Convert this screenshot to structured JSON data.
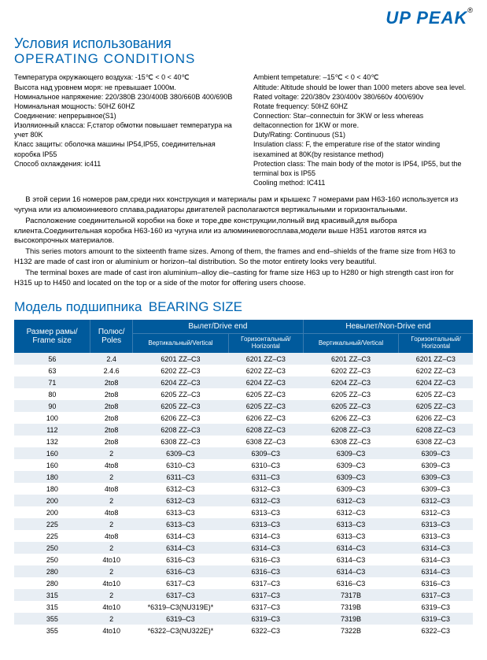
{
  "logo": {
    "text": "UP PEAK",
    "registered": "®"
  },
  "headings": {
    "op_ru": "Условия использования",
    "op_en": "OPERATING CONDITIONS",
    "bearing_ru": "Модель подшипника",
    "bearing_en": "BEARING SIZE"
  },
  "conditions_ru": "Температура окружающего воздуха: -15℃ < 0 < 40℃\nВысота над уровнем моря: не превышает 1000м.\nНоминальное напряжение: 220/380В 230/400В 380/660В 400/690В\nНоминальная мощность: 50HZ 60HZ\nСоединение: непрерывное(S1)\nИзоляионный класса: F,статор обмотки повышает температура на учет 80K\nКласс защиты: оболочка машины IP54,IP55, соединительная коробка IP55\nСпособ охлаждения: ic411",
  "conditions_en": "Ambient tempetature: –15℃ < 0 < 40℃\nAltitude: Altitude should be lower than 1000 meters above sea level.\nRated voltage: 220/380v 230/400v 380/660v 400/690v\nRotate frequency: 50HZ 60HZ\nConnection: Star–connectuin for 3KW or less whereas deltaconnection for 1KW or more.\nDuty/Rating: Continuous (S1)\nInsulation class: F, the emperature rise of the stator winding isexamined at 80K(by resistance method)\nProtection class: The main body of the motor is IP54, IP55, but the terminal box is IP55\nCooling method: IC411",
  "paragraphs": [
    "В этой серии 16 номеров рам,среди них конструкция и материалы рам и крышекс 7 номерами рам H63-160 используется из чугуна или из алюмоиниевого сплава,радиаторы двигателей располагаются вертикальными и горизонтальными.",
    "Расположение соединительной коробки на боке и торе,две конструкции,полный вид красивый,для выбора клиента.Соединительная коробка H63-160 из чугуна или из алюминиевогосплава,модели выше H351 изготов яятся из высокопрочных материалов.",
    "This series motors amount to the sixteenth frame sizes. Among of them, the frames and end–shields of the frame size from H63 to H132 are made of cast iron or aluminium or horizon–tal distribution. So the motor entirety looks very beautiful.",
    "The terminal boxes are made of cast iron aluminium–alloy die–casting for frame size H63 up to H280 or high strength cast iron for H315 up to H450 and located on the top or a side of the motor for offering users choose."
  ],
  "table": {
    "colors": {
      "header_bg": "#005a9c",
      "header_text": "#ffffff",
      "stripe": "#e8eef4",
      "plain": "#ffffff"
    },
    "headers": {
      "frame": "Размер рамы/\nFrame size",
      "poles": "Полюс/\nPoles",
      "drive": "Вылет/Drive end",
      "nondrive": "Невылет/Non-Drive end",
      "vert": "Вертикальный/Vertical",
      "horiz": "Горизонтальный/\nHorizontal"
    },
    "rows": [
      [
        "56",
        "2.4",
        "6201 ZZ–C3",
        "6201 ZZ–C3",
        "6201 ZZ–C3",
        "6201 ZZ–C3"
      ],
      [
        "63",
        "2.4.6",
        "6202 ZZ–C3",
        "6202 ZZ–C3",
        "6202 ZZ–C3",
        "6202 ZZ–C3"
      ],
      [
        "71",
        "2to8",
        "6204 ZZ–C3",
        "6204 ZZ–C3",
        "6204 ZZ–C3",
        "6204 ZZ–C3"
      ],
      [
        "80",
        "2to8",
        "6205 ZZ–C3",
        "6205 ZZ–C3",
        "6205 ZZ–C3",
        "6205 ZZ–C3"
      ],
      [
        "90",
        "2to8",
        "6205 ZZ–C3",
        "6205 ZZ–C3",
        "6205 ZZ–C3",
        "6205 ZZ–C3"
      ],
      [
        "100",
        "2to8",
        "6206 ZZ–C3",
        "6206 ZZ–C3",
        "6206 ZZ–C3",
        "6206 ZZ–C3"
      ],
      [
        "112",
        "2to8",
        "6208 ZZ–C3",
        "6208 ZZ–C3",
        "6208 ZZ–C3",
        "6208 ZZ–C3"
      ],
      [
        "132",
        "2to8",
        "6308 ZZ–C3",
        "6308 ZZ–C3",
        "6308 ZZ–C3",
        "6308 ZZ–C3"
      ],
      [
        "160",
        "2",
        "6309–C3",
        "6309–C3",
        "6309–C3",
        "6309–C3"
      ],
      [
        "160",
        "4to8",
        "6310–C3",
        "6310–C3",
        "6309–C3",
        "6309–C3"
      ],
      [
        "180",
        "2",
        "6311–C3",
        "6311–C3",
        "6309–C3",
        "6309–C3"
      ],
      [
        "180",
        "4to8",
        "6312–C3",
        "6312–C3",
        "6309–C3",
        "6309–C3"
      ],
      [
        "200",
        "2",
        "6312–C3",
        "6312–C3",
        "6312–C3",
        "6312–C3"
      ],
      [
        "200",
        "4to8",
        "6313–C3",
        "6313–C3",
        "6312–C3",
        "6312–C3"
      ],
      [
        "225",
        "2",
        "6313–C3",
        "6313–C3",
        "6313–C3",
        "6313–C3"
      ],
      [
        "225",
        "4to8",
        "6314–C3",
        "6314–C3",
        "6313–C3",
        "6313–C3"
      ],
      [
        "250",
        "2",
        "6314–C3",
        "6314–C3",
        "6314–C3",
        "6314–C3"
      ],
      [
        "250",
        "4to10",
        "6316–C3",
        "6316–C3",
        "6314–C3",
        "6314–C3"
      ],
      [
        "280",
        "2",
        "6316–C3",
        "6316–C3",
        "6314–C3",
        "6314–C3"
      ],
      [
        "280",
        "4to10",
        "6317–C3",
        "6317–C3",
        "6316–C3",
        "6316–C3"
      ],
      [
        "315",
        "2",
        "6317–C3",
        "6317–C3",
        "7317B",
        "6317–C3"
      ],
      [
        "315",
        "4to10",
        "*6319–C3(NU319E)*",
        "6317–C3",
        "7319B",
        "6319–C3"
      ],
      [
        "355",
        "2",
        "6319–C3",
        "6319–C3",
        "7319B",
        "6319–C3"
      ],
      [
        "355",
        "4to10",
        "*6322–C3(NU322E)*",
        "6322–C3",
        "7322B",
        "6322–C3"
      ]
    ]
  }
}
